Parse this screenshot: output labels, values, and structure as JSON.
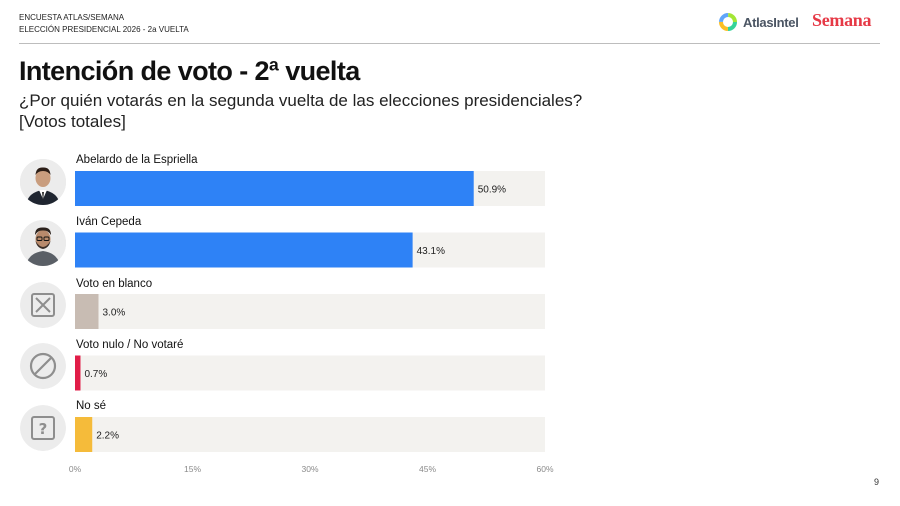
{
  "header": {
    "line1": "ENCUESTA ATLAS/SEMANA",
    "line2": "ELECCIÓN PRESIDENCIAL 2026 - 2a VUELTA",
    "logo_atlas": "AtlasIntel",
    "logo_semana": "Semana"
  },
  "title": "Intención de voto - 2ª vuelta",
  "subtitle": "¿Por quién votarás en la segunda vuelta de las elecciones presidenciales?",
  "unit_note": "[Votos totales]",
  "page_number": "9",
  "colors": {
    "candidate": "#2e82f6",
    "blanco": "#c8bcb3",
    "nulo": "#e11d48",
    "nose": "#f5bb3a",
    "track": "#f3f2ef"
  },
  "icons": [
    "person-photo",
    "person-photo",
    "x-box-icon",
    "prohibited-icon",
    "question-box-icon"
  ],
  "chart_data": {
    "type": "bar",
    "orientation": "horizontal",
    "categories": [
      "Abelardo de la Espriella",
      "Iván Cepeda",
      "Voto en blanco",
      "Voto nulo / No votaré",
      "No sé"
    ],
    "values": [
      50.9,
      43.1,
      3.0,
      0.7,
      2.2
    ],
    "value_labels": [
      "50.9%",
      "43.1%",
      "3.0%",
      "0.7%",
      "2.2%"
    ],
    "xlim": [
      0,
      60
    ],
    "xticks": [
      "0%",
      "15%",
      "30%",
      "45%",
      "60%"
    ],
    "grid": false,
    "legend": "none"
  }
}
